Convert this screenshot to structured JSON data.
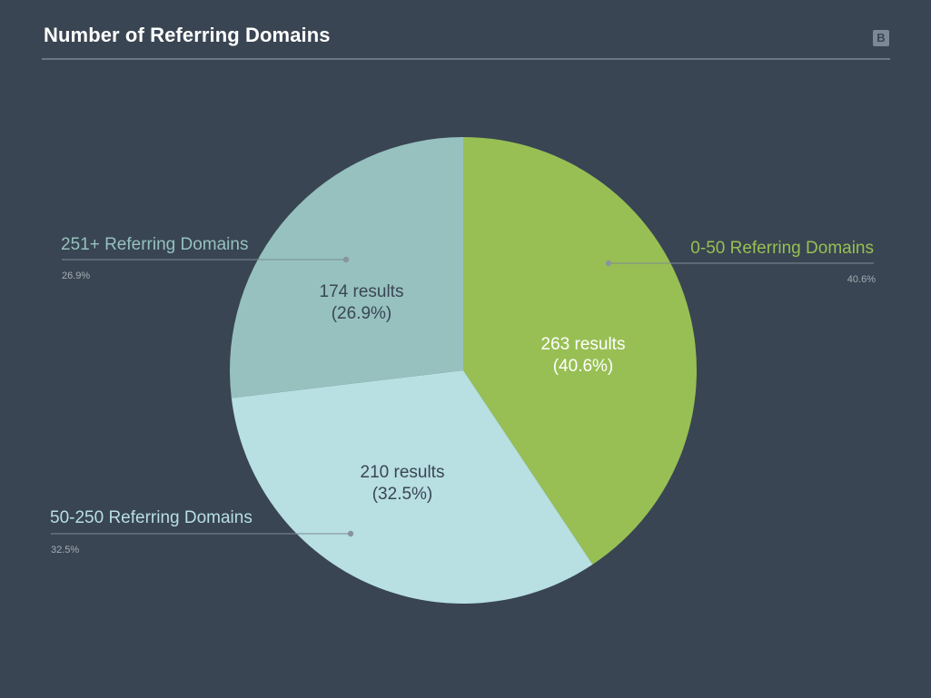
{
  "header": {
    "title": "Number of Referring Domains",
    "logo_letter": "B"
  },
  "chart_data": {
    "type": "pie",
    "title": "Number of Referring Domains",
    "start_angle_deg": 0,
    "direction": "clockwise",
    "slices": [
      {
        "label": "0-50 Referring Domains",
        "value": 263,
        "percent_label": "40.6%",
        "inner_line1": "263 results",
        "inner_line2": "(40.6%)",
        "color": "#98bf54",
        "label_color": "#98bf54",
        "inner_text_color": "#ffffff",
        "label_side": "right"
      },
      {
        "label": "50-250 Referring Domains",
        "value": 210,
        "percent_label": "32.5%",
        "inner_line1": "210 results",
        "inner_line2": "(32.5%)",
        "color": "#b8dfe2",
        "label_color": "#b8dfe2",
        "inner_text_color": "#3a4654",
        "label_side": "left"
      },
      {
        "label": "251+ Referring Domains",
        "value": 174,
        "percent_label": "26.9%",
        "inner_line1": "174 results",
        "inner_line2": "(26.9%)",
        "color": "#96c1bf",
        "label_color": "#96c1bf",
        "inner_text_color": "#3a4654",
        "label_side": "left"
      }
    ]
  },
  "colors": {
    "background": "#394552",
    "leader_line": "#7e8a95",
    "dot": "#8a949c",
    "sub_label": "#a4adb5"
  }
}
